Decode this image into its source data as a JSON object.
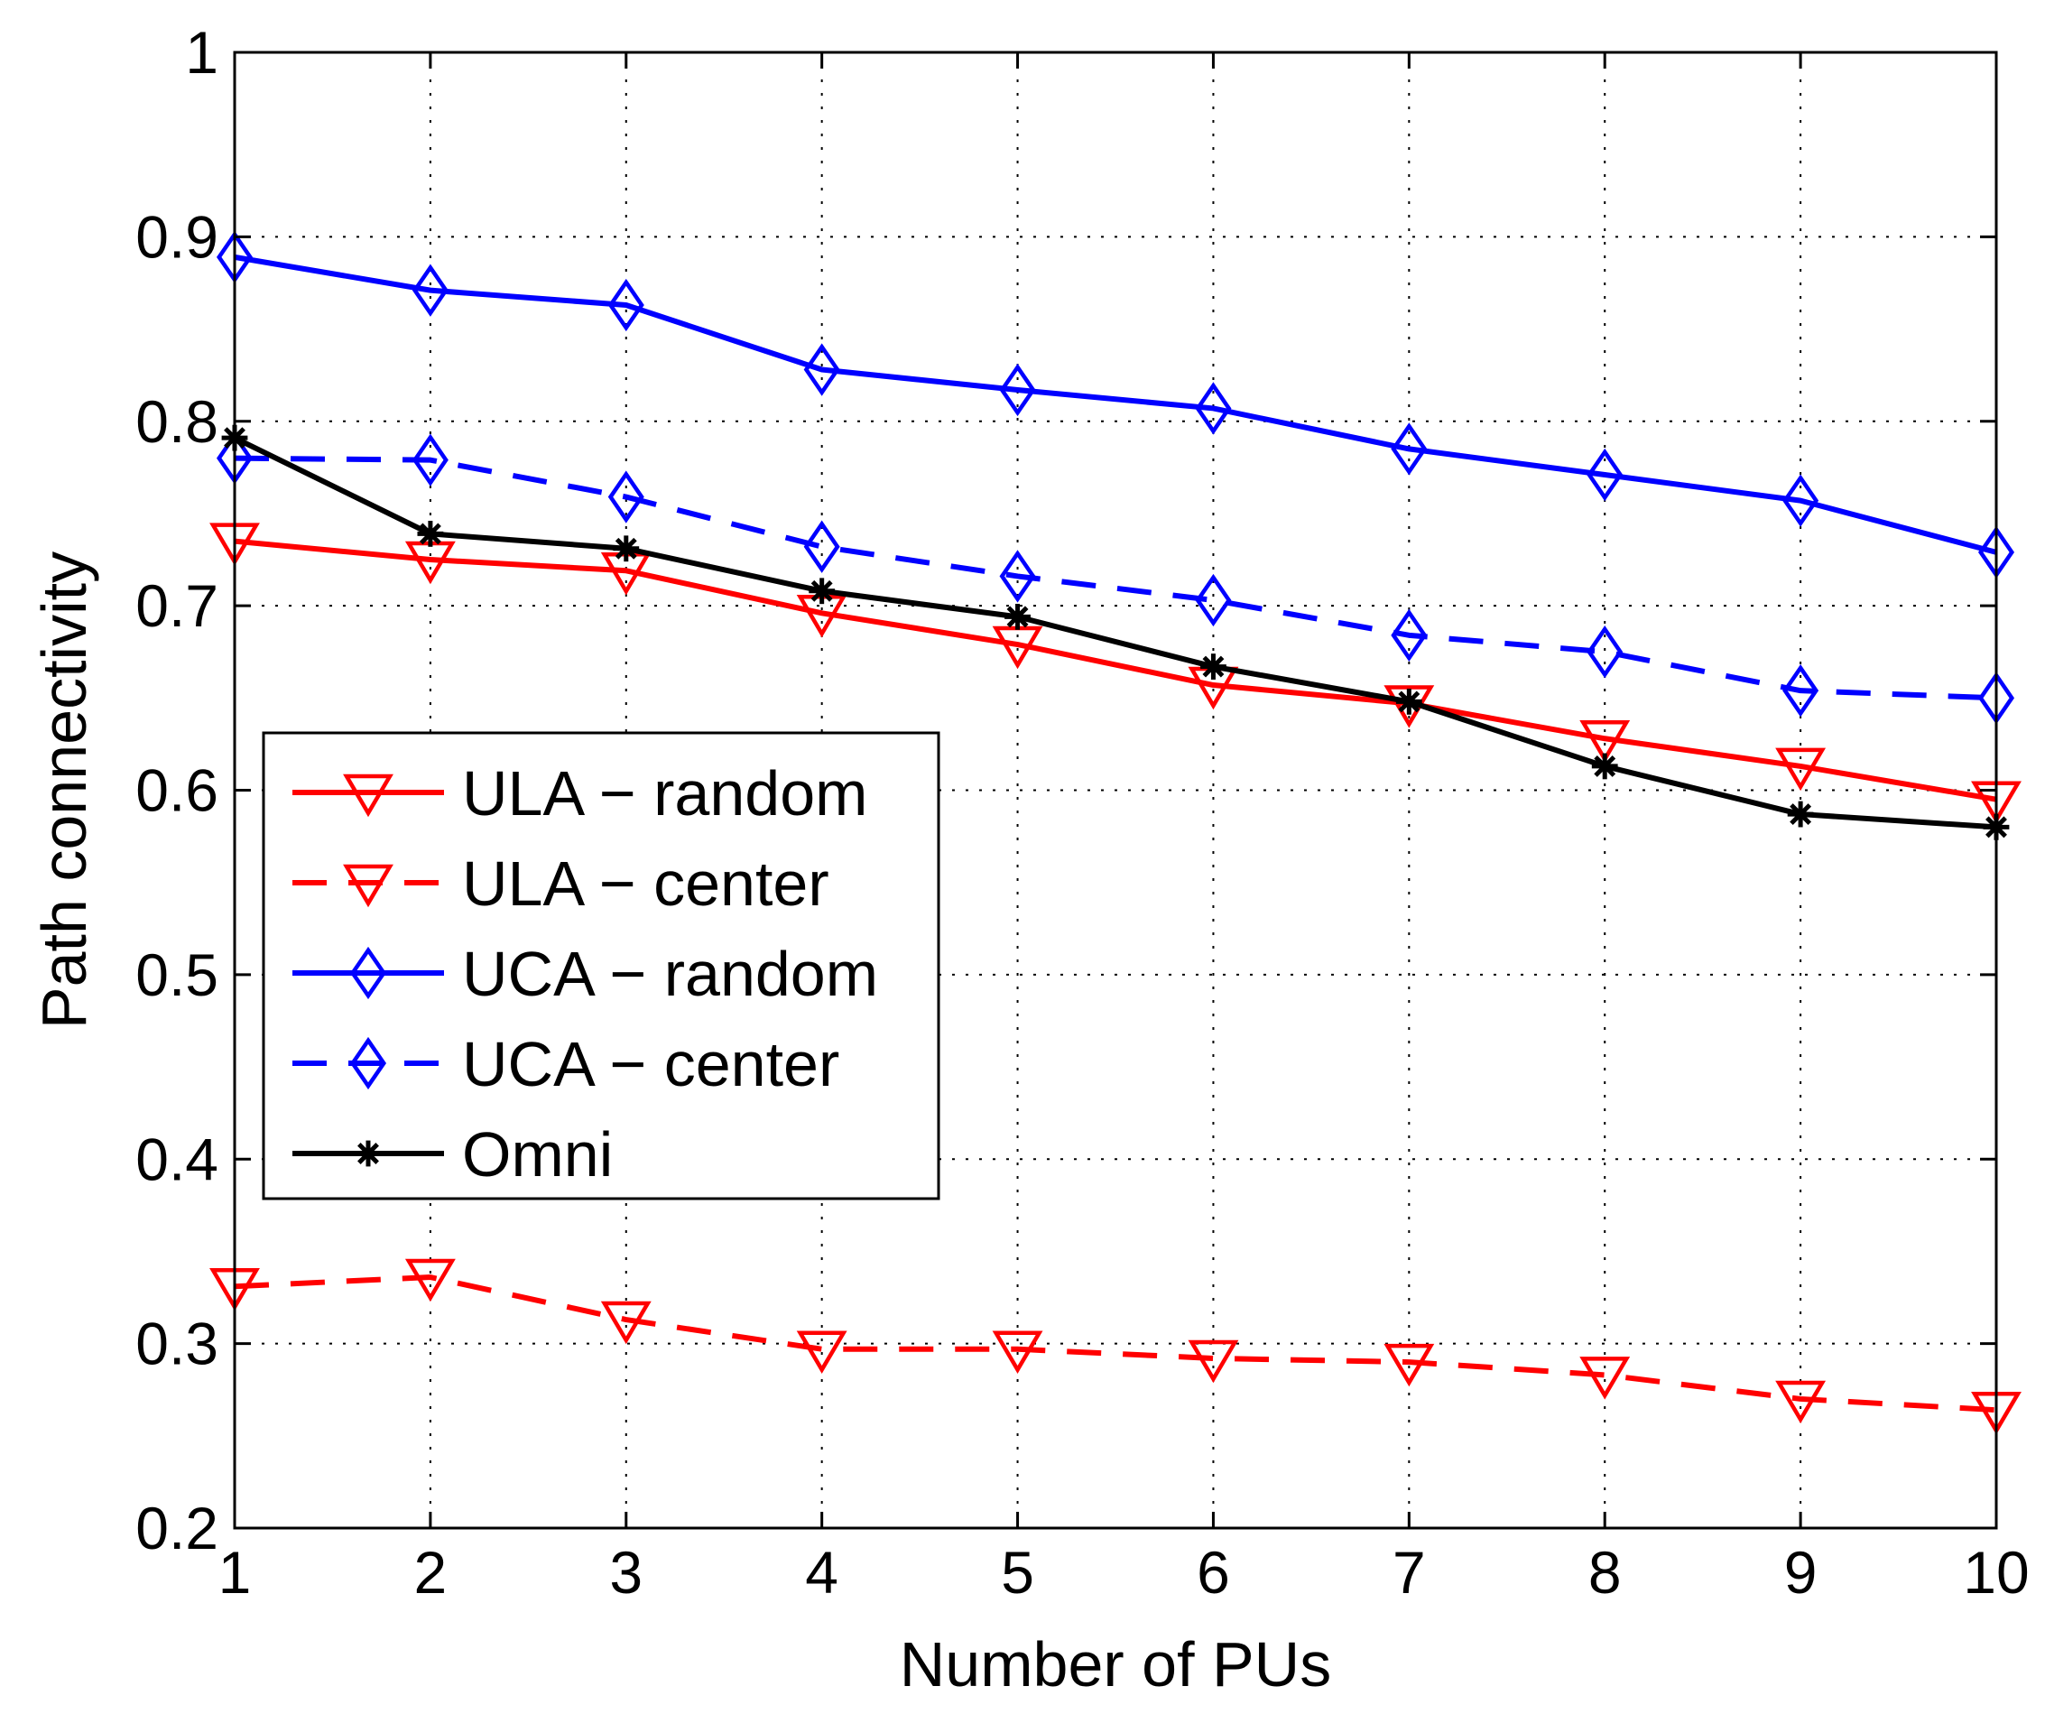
{
  "chart_data": {
    "type": "line",
    "title": "",
    "xlabel": "Number of PUs",
    "ylabel": "Path connectivity",
    "xlim": [
      1,
      10
    ],
    "ylim": [
      0.2,
      1
    ],
    "grid": true,
    "x": [
      1,
      2,
      3,
      4,
      5,
      6,
      7,
      8,
      9,
      10
    ],
    "x_ticks": [
      "1",
      "2",
      "3",
      "4",
      "5",
      "6",
      "7",
      "8",
      "9",
      "10"
    ],
    "y_ticks": [
      "0.2",
      "0.3",
      "0.4",
      "0.5",
      "0.6",
      "0.7",
      "0.8",
      "0.9",
      "1"
    ],
    "legend_position": "center-left",
    "series": [
      {
        "name": "ULA − random",
        "color": "#ff0000",
        "dashed": false,
        "marker": "triangle-down",
        "values": [
          0.735,
          0.725,
          0.719,
          0.696,
          0.679,
          0.657,
          0.647,
          0.628,
          0.613,
          0.595
        ]
      },
      {
        "name": "ULA − center",
        "color": "#ff0000",
        "dashed": true,
        "marker": "triangle-down",
        "values": [
          0.331,
          0.336,
          0.313,
          0.297,
          0.297,
          0.292,
          0.29,
          0.283,
          0.27,
          0.264
        ]
      },
      {
        "name": "UCA − random",
        "color": "#0000ff",
        "dashed": false,
        "marker": "diamond",
        "values": [
          0.889,
          0.871,
          0.863,
          0.828,
          0.817,
          0.807,
          0.785,
          0.771,
          0.757,
          0.729
        ]
      },
      {
        "name": "UCA − center",
        "color": "#0000ff",
        "dashed": true,
        "marker": "diamond",
        "values": [
          0.78,
          0.779,
          0.759,
          0.732,
          0.716,
          0.703,
          0.684,
          0.675,
          0.654,
          0.65
        ]
      },
      {
        "name": "Omni",
        "color": "#000000",
        "dashed": false,
        "marker": "asterisk",
        "values": [
          0.791,
          0.739,
          0.731,
          0.708,
          0.694,
          0.667,
          0.648,
          0.613,
          0.587,
          0.58
        ]
      }
    ]
  }
}
